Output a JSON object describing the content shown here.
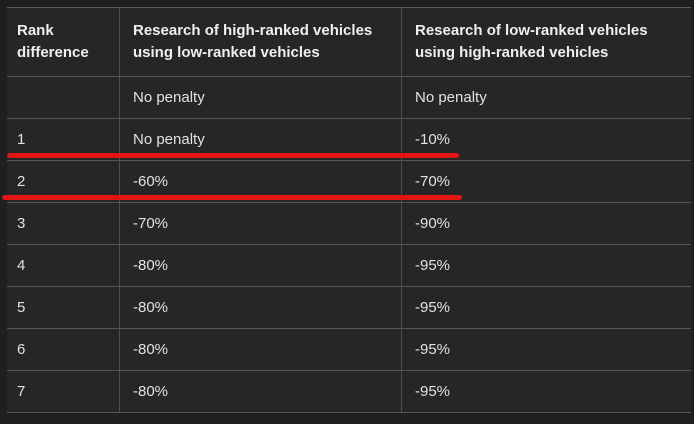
{
  "table": {
    "header": {
      "rank": {
        "line1": "Rank",
        "line2": "difference"
      },
      "high_using_low": {
        "line1": "Research of high-ranked vehicles",
        "line2": "using low-ranked vehicles"
      },
      "low_using_high": {
        "line1": "Research of low-ranked vehicles",
        "line2": "using high-ranked vehicles"
      }
    },
    "rows": [
      {
        "rank": "",
        "high_using_low": "No penalty",
        "low_using_high": "No penalty"
      },
      {
        "rank": "1",
        "high_using_low": "No penalty",
        "low_using_high": "-10%"
      },
      {
        "rank": "2",
        "high_using_low": "-60%",
        "low_using_high": "-70%"
      },
      {
        "rank": "3",
        "high_using_low": "-70%",
        "low_using_high": "-90%"
      },
      {
        "rank": "4",
        "high_using_low": "-80%",
        "low_using_high": "-95%"
      },
      {
        "rank": "5",
        "high_using_low": "-80%",
        "low_using_high": "-95%"
      },
      {
        "rank": "6",
        "high_using_low": "-80%",
        "low_using_high": "-95%"
      },
      {
        "rank": "7",
        "high_using_low": "-80%",
        "low_using_high": "-95%"
      }
    ]
  },
  "annotations": {
    "underline_color": "#e31414",
    "underlined_rows": [
      "1",
      "2"
    ]
  },
  "colors": {
    "page_bg": "#1f1f1f",
    "cell_bg": "#262626",
    "row_border": "#565656",
    "column_border": "#4f4f4f",
    "text": "#e2e2e2",
    "header_text": "#efefef",
    "highlight_red": "#e31414"
  }
}
